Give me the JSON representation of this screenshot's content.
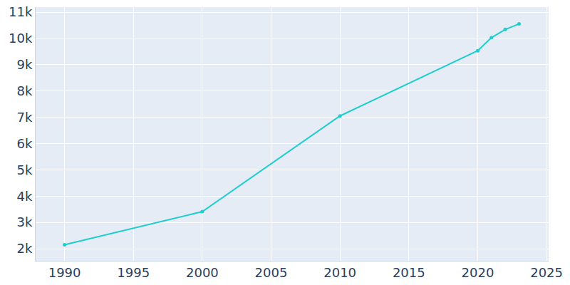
{
  "chart_data": {
    "type": "line",
    "x": [
      1990,
      2000,
      2010,
      2020,
      2021,
      2022,
      2023
    ],
    "values": [
      2150,
      3410,
      7050,
      9530,
      10030,
      10340,
      10550
    ],
    "color": "#1fcdcd",
    "marker": "circle",
    "xlim": [
      1987.9,
      2025.15
    ],
    "xticks": [
      1990,
      1995,
      2000,
      2005,
      2010,
      2015,
      2020,
      2025
    ],
    "ylim": [
      1540,
      11190
    ],
    "yticks": [
      {
        "value": 2000,
        "label": "2k"
      },
      {
        "value": 3000,
        "label": "3k"
      },
      {
        "value": 4000,
        "label": "4k"
      },
      {
        "value": 5000,
        "label": "5k"
      },
      {
        "value": 6000,
        "label": "6k"
      },
      {
        "value": 7000,
        "label": "7k"
      },
      {
        "value": 8000,
        "label": "8k"
      },
      {
        "value": 9000,
        "label": "9k"
      },
      {
        "value": 10000,
        "label": "10k"
      },
      {
        "value": 11000,
        "label": "11k"
      }
    ],
    "grid": true
  }
}
